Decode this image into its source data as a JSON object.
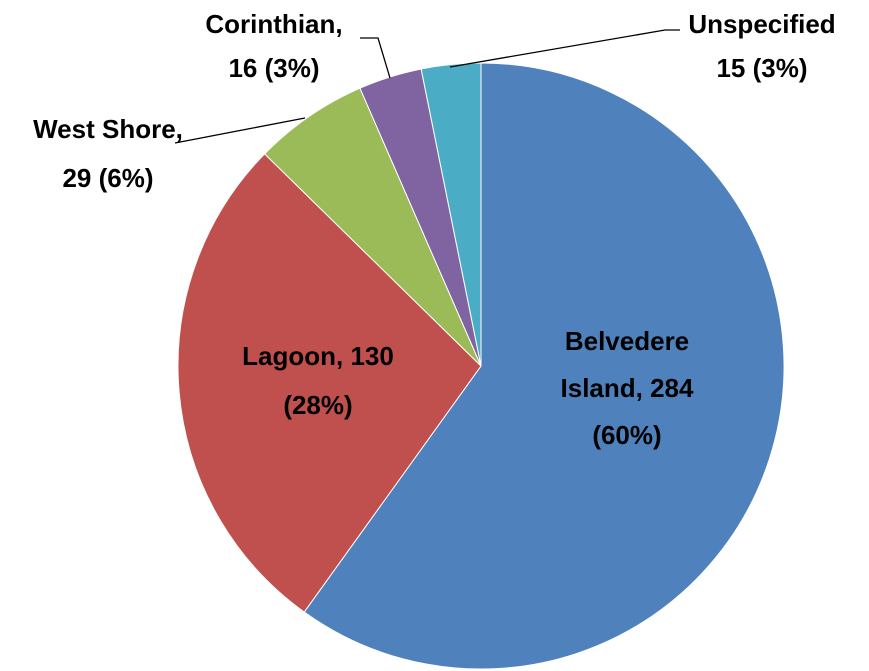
{
  "chart_data": {
    "type": "pie",
    "values": [
      284,
      130,
      29,
      16,
      15
    ],
    "value_labels": [
      [
        "Belvedere",
        "Island, 284",
        "(60%)"
      ],
      [
        "Lagoon, 130",
        "(28%)"
      ],
      [
        "West Shore,",
        "29 (6%)"
      ],
      [
        "Corinthian,",
        "16 (3%)"
      ],
      [
        "Unspecified",
        "15 (3%)"
      ]
    ],
    "colors": [
      "#4f81bd",
      "#c0504d",
      "#9bbb59",
      "#8064a2",
      "#4bacc6"
    ],
    "start_angle": 0,
    "direction": "clockwise"
  }
}
